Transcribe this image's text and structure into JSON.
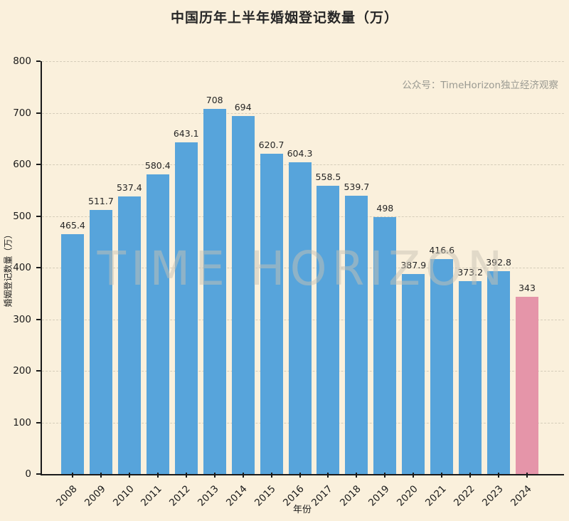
{
  "title": "中国历年上半年婚姻登记数量（万）",
  "credit": "公众号：TimeHorizon独立经济观察",
  "background_watermark": "TIME HORIZON",
  "colors": {
    "background": "#FAF0DC",
    "bar": "#57A4DB",
    "bar_highlight": "#E595A9",
    "axis": "#1A1A1A",
    "grid": "#D5CDBA",
    "credit_text": "#9A9A92",
    "text": "#262626"
  },
  "chart_data": {
    "type": "bar",
    "title": "中国历年上半年婚姻登记数量（万）",
    "xlabel": "年份",
    "ylabel": "婚姻登记数量（万）",
    "categories": [
      "2008",
      "2009",
      "2010",
      "2011",
      "2012",
      "2013",
      "2014",
      "2015",
      "2016",
      "2017",
      "2018",
      "2019",
      "2020",
      "2021",
      "2022",
      "2023",
      "2024"
    ],
    "values": [
      465.4,
      511.7,
      537.4,
      580.4,
      643.1,
      708,
      694,
      620.7,
      604.3,
      558.5,
      539.7,
      498,
      387.9,
      416.6,
      373.2,
      392.8,
      343
    ],
    "value_labels": [
      "465.4",
      "511.7",
      "537.4",
      "580.4",
      "643.1",
      "708",
      "694",
      "620.7",
      "604.3",
      "558.5",
      "539.7",
      "498",
      "387.9",
      "416.6",
      "373.2",
      "392.8",
      "343"
    ],
    "ylim": [
      0,
      800
    ],
    "yticks": [
      0,
      100,
      200,
      300,
      400,
      500,
      600,
      700,
      800
    ],
    "grid": true,
    "grid_style": "dashed",
    "legend": "none",
    "highlight_index": 16,
    "highlight_color": "#E595A9",
    "bar_color": "#57A4DB"
  }
}
